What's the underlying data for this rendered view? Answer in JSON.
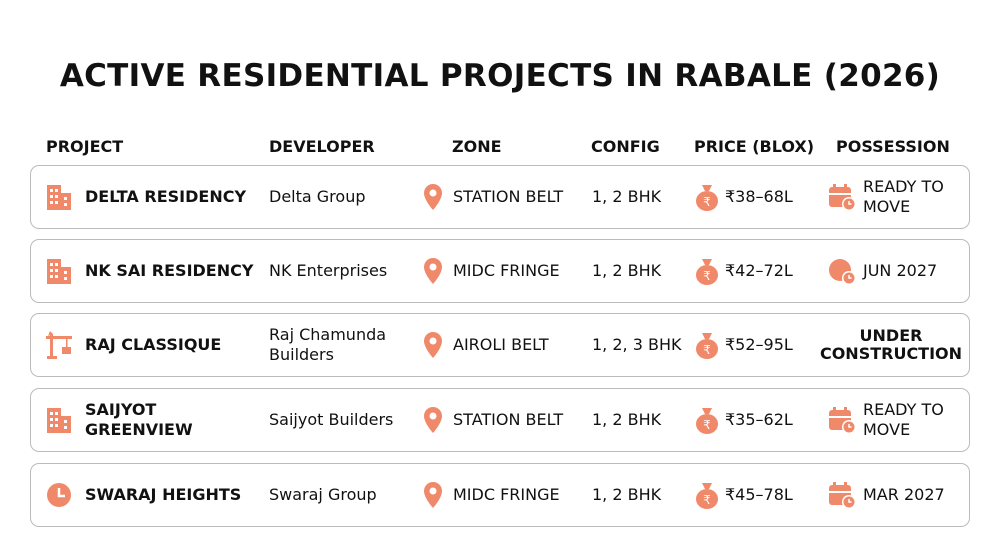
{
  "title": "ACTIVE RESIDENTIAL PROJECTS IN RABALE (2026)",
  "table": {
    "headers": [
      "PROJECT",
      "DEVELOPER",
      "ZONE",
      "CONFIG",
      "PRICE (BLOX)",
      "POSSESSION"
    ],
    "rows": [
      [
        "DELTA RESIDENCY",
        "Delta Group",
        "STATION BELT",
        "1, 2 BHK",
        "₹38–68L",
        "READY TO MOVE"
      ],
      [
        "NK SAI RESIDENCY",
        "NK Enterprises",
        "MIDC FRINGE",
        "1, 2 BHK",
        "₹42–72L",
        "JUN 2027"
      ],
      [
        "RAJ CLASSIQUE",
        "Raj Chamunda Builders",
        "AIROLI BELT",
        "1, 2, 3 BHK",
        "₹52–95L",
        "UNDER CONSTRUCTION"
      ],
      [
        "SAIJYOT GREENVIEW",
        "Saijyot Builders",
        "STATION BELT",
        "1, 2 BHK",
        "₹35–62L",
        "READY TO MOVE"
      ],
      [
        "SWARAJ HEIGHTS",
        "Swaraj Group",
        "MIDC FRINGE",
        "1, 2 BHK",
        "₹45–78L",
        "MAR 2027"
      ]
    ]
  }
}
